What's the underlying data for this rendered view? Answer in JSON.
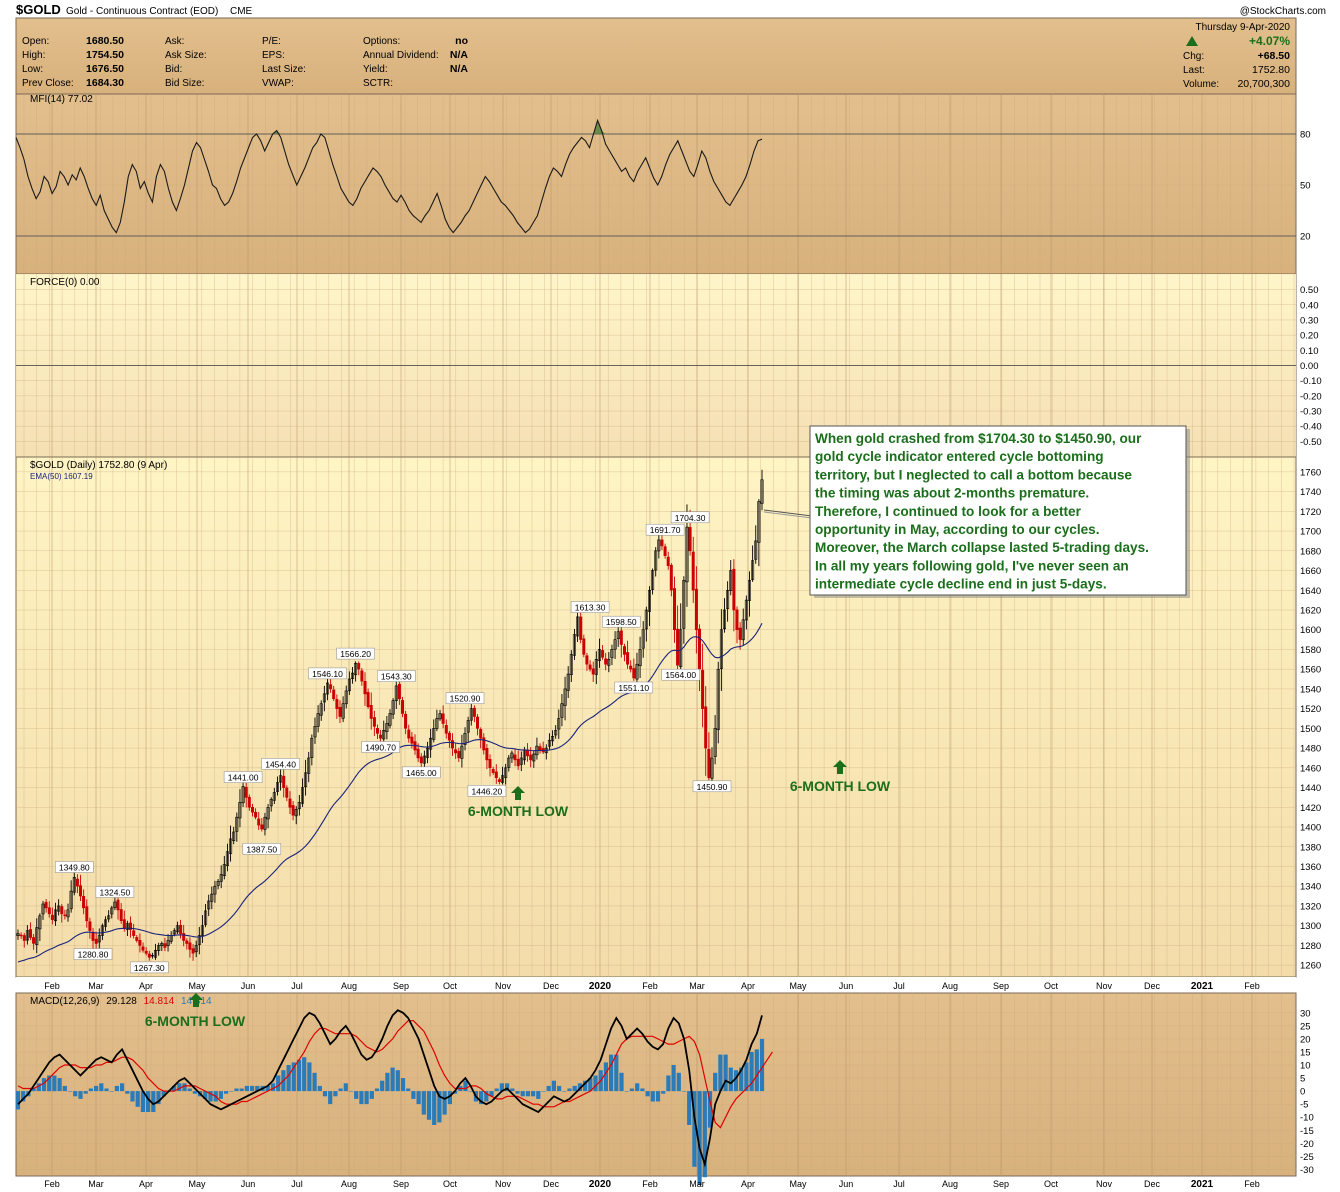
{
  "header": {
    "symbol": "$GOLD",
    "description": "Gold - Continuous Contract (EOD)",
    "exchange": "CME",
    "watermark": "@StockCharts.com",
    "date": "Thursday  9-Apr-2020",
    "change_pct": "+4.07%",
    "stats_left": [
      {
        "label": "Open:",
        "value": "1680.50"
      },
      {
        "label": "High:",
        "value": "1754.50"
      },
      {
        "label": "Low:",
        "value": "1676.50"
      },
      {
        "label": "Prev Close:",
        "value": "1684.30"
      }
    ],
    "stats_mid1": [
      {
        "label": "Ask:",
        "value": ""
      },
      {
        "label": "Ask Size:",
        "value": ""
      },
      {
        "label": "Bid:",
        "value": ""
      },
      {
        "label": "Bid Size:",
        "value": ""
      }
    ],
    "stats_mid2": [
      {
        "label": "P/E:",
        "value": ""
      },
      {
        "label": "EPS:",
        "value": ""
      },
      {
        "label": "Last Size:",
        "value": ""
      },
      {
        "label": "VWAP:",
        "value": ""
      }
    ],
    "stats_mid3": [
      {
        "label": "Options:",
        "value": "no"
      },
      {
        "label": "Annual Dividend:",
        "value": "N/A"
      },
      {
        "label": "Yield:",
        "value": "N/A"
      },
      {
        "label": "SCTR:",
        "value": ""
      }
    ],
    "stats_right": [
      {
        "label": "Chg:",
        "value": "+68.50"
      },
      {
        "label": "Last:",
        "value": "1752.80"
      },
      {
        "label": "Volume:",
        "value": "20,700,300"
      }
    ]
  },
  "colors": {
    "panel_bg": "#dcb785",
    "price_bg_top": "#fff4c4",
    "price_bg_bottom": "#f3dfa9",
    "up": "#000000",
    "down": "#cc0000",
    "ema": "#1a237e",
    "macd_line": "#000000",
    "signal_line": "#e00000",
    "histogram": "#2b7bb9",
    "annotation_green": "#1b6e1b"
  },
  "chart_data": [
    {
      "panel": "mfi",
      "type": "line",
      "label": "MFI(14) 77.02",
      "ylim": [
        0,
        100
      ],
      "yticks": [
        20,
        50,
        80
      ],
      "reference_lines": [
        20,
        80
      ],
      "values": [
        78,
        72,
        65,
        55,
        48,
        42,
        46,
        55,
        52,
        45,
        49,
        58,
        55,
        50,
        56,
        53,
        60,
        55,
        48,
        42,
        38,
        44,
        35,
        30,
        25,
        22,
        28,
        40,
        55,
        62,
        58,
        48,
        52,
        45,
        40,
        55,
        62,
        58,
        48,
        40,
        35,
        42,
        50,
        60,
        70,
        75,
        72,
        65,
        58,
        50,
        48,
        42,
        38,
        40,
        45,
        52,
        60,
        66,
        72,
        78,
        80,
        76,
        70,
        75,
        80,
        82,
        78,
        70,
        62,
        56,
        50,
        55,
        60,
        66,
        72,
        75,
        80,
        78,
        70,
        62,
        55,
        48,
        44,
        40,
        38,
        42,
        48,
        52,
        56,
        60,
        58,
        55,
        50,
        46,
        42,
        40,
        44,
        40,
        35,
        32,
        30,
        28,
        32,
        35,
        40,
        45,
        38,
        30,
        25,
        22,
        25,
        28,
        32,
        35,
        40,
        45,
        50,
        55,
        52,
        48,
        44,
        40,
        38,
        35,
        32,
        28,
        25,
        22,
        24,
        28,
        32,
        40,
        48,
        55,
        60,
        58,
        55,
        62,
        68,
        72,
        75,
        78,
        76,
        72,
        80,
        88,
        82,
        74,
        70,
        66,
        62,
        58,
        60,
        55,
        52,
        58,
        62,
        66,
        60,
        54,
        50,
        55,
        62,
        68,
        72,
        76,
        70,
        64,
        58,
        55,
        62,
        70,
        66,
        58,
        52,
        48,
        44,
        40,
        38,
        42,
        46,
        50,
        55,
        62,
        70,
        76,
        77
      ],
      "highlight_above": 80
    },
    {
      "panel": "force",
      "type": "line",
      "label": "FORCE(0) 0.00",
      "ylim": [
        -0.55,
        0.55
      ],
      "yticks": [
        0.5,
        0.4,
        0.3,
        0.2,
        0.1,
        0.0,
        -0.1,
        -0.2,
        -0.3,
        -0.4,
        -0.5
      ],
      "values": [
        0
      ]
    },
    {
      "panel": "price",
      "type": "candlestick",
      "label": "$GOLD (Daily) 1752.80 (9 Apr)",
      "ema_label": "EMA(50) 1607.19",
      "ylim": [
        1250,
        1770
      ],
      "yticks": [
        1260,
        1280,
        1300,
        1320,
        1340,
        1360,
        1380,
        1400,
        1420,
        1440,
        1460,
        1480,
        1500,
        1520,
        1540,
        1560,
        1580,
        1600,
        1620,
        1640,
        1660,
        1680,
        1700,
        1720,
        1740,
        1760
      ],
      "x_months": [
        "Feb",
        "Mar",
        "Apr",
        "May",
        "Jun",
        "Jul",
        "Aug",
        "Sep",
        "Oct",
        "Nov",
        "Dec",
        "2020",
        "Feb",
        "Mar",
        "Apr",
        "May",
        "Jun",
        "Jul",
        "Aug",
        "Sep",
        "Oct",
        "Nov",
        "Dec",
        "2021",
        "Feb"
      ],
      "closes": [
        1292,
        1290,
        1285,
        1295,
        1288,
        1282,
        1298,
        1310,
        1322,
        1318,
        1312,
        1306,
        1316,
        1320,
        1312,
        1310,
        1316,
        1335,
        1349,
        1340,
        1330,
        1318,
        1305,
        1295,
        1285,
        1282,
        1290,
        1300,
        1306,
        1310,
        1318,
        1324,
        1316,
        1305,
        1298,
        1302,
        1296,
        1290,
        1285,
        1280,
        1275,
        1272,
        1268,
        1270,
        1275,
        1280,
        1282,
        1278,
        1285,
        1290,
        1295,
        1300,
        1292,
        1285,
        1282,
        1276,
        1272,
        1280,
        1290,
        1300,
        1315,
        1325,
        1332,
        1340,
        1345,
        1352,
        1362,
        1375,
        1388,
        1395,
        1410,
        1425,
        1441,
        1430,
        1420,
        1415,
        1410,
        1402,
        1398,
        1410,
        1420,
        1428,
        1435,
        1445,
        1452,
        1440,
        1430,
        1420,
        1412,
        1418,
        1425,
        1440,
        1455,
        1470,
        1490,
        1502,
        1515,
        1525,
        1535,
        1546,
        1540,
        1530,
        1520,
        1512,
        1525,
        1538,
        1550,
        1556,
        1566,
        1560,
        1548,
        1535,
        1522,
        1510,
        1502,
        1495,
        1490,
        1498,
        1505,
        1515,
        1528,
        1543,
        1530,
        1515,
        1500,
        1490,
        1485,
        1478,
        1470,
        1465,
        1472,
        1480,
        1490,
        1500,
        1510,
        1515,
        1505,
        1495,
        1488,
        1480,
        1475,
        1470,
        1482,
        1495,
        1508,
        1520,
        1512,
        1500,
        1490,
        1478,
        1468,
        1460,
        1455,
        1450,
        1446,
        1452,
        1460,
        1470,
        1475,
        1468,
        1462,
        1470,
        1478,
        1472,
        1468,
        1474,
        1482,
        1478,
        1476,
        1480,
        1488,
        1492,
        1498,
        1510,
        1525,
        1540,
        1555,
        1575,
        1595,
        1613,
        1590,
        1575,
        1565,
        1560,
        1555,
        1570,
        1580,
        1572,
        1565,
        1570,
        1580,
        1590,
        1598,
        1585,
        1575,
        1565,
        1560,
        1551,
        1565,
        1580,
        1600,
        1620,
        1640,
        1660,
        1680,
        1691,
        1685,
        1675,
        1665,
        1640,
        1600,
        1564,
        1600,
        1650,
        1704,
        1680,
        1640,
        1600,
        1560,
        1520,
        1480,
        1450,
        1470,
        1500,
        1560,
        1600,
        1620,
        1640,
        1660,
        1620,
        1600,
        1590,
        1610,
        1630,
        1650,
        1670,
        1690,
        1730,
        1752
      ],
      "labels": [
        {
          "index": 18,
          "text": "1349.80",
          "pos": "above"
        },
        {
          "index": 24,
          "text": "1280.80",
          "pos": "below"
        },
        {
          "index": 31,
          "text": "1324.50",
          "pos": "above"
        },
        {
          "index": 42,
          "text": "1267.30",
          "pos": "below"
        },
        {
          "index": 72,
          "text": "1441.00",
          "pos": "above"
        },
        {
          "index": 78,
          "text": "1387.50",
          "pos": "below"
        },
        {
          "index": 84,
          "text": "1454.40",
          "pos": "above"
        },
        {
          "index": 99,
          "text": "1546.10",
          "pos": "above"
        },
        {
          "index": 108,
          "text": "1566.20",
          "pos": "above"
        },
        {
          "index": 116,
          "text": "1490.70",
          "pos": "below"
        },
        {
          "index": 121,
          "text": "1543.30",
          "pos": "above"
        },
        {
          "index": 129,
          "text": "1465.00",
          "pos": "below"
        },
        {
          "index": 143,
          "text": "1520.90",
          "pos": "above"
        },
        {
          "index": 150,
          "text": "1446.20",
          "pos": "below"
        },
        {
          "index": 183,
          "text": "1613.30",
          "pos": "above"
        },
        {
          "index": 197,
          "text": "1551.10",
          "pos": "below"
        },
        {
          "index": 193,
          "text": "1598.50",
          "pos": "above"
        },
        {
          "index": 207,
          "text": "1691.70",
          "pos": "above"
        },
        {
          "index": 212,
          "text": "1564.00",
          "pos": "below"
        },
        {
          "index": 215,
          "text": "1704.30",
          "pos": "above"
        },
        {
          "index": 222,
          "text": "1450.90",
          "pos": "below"
        }
      ]
    },
    {
      "panel": "macd",
      "type": "line+histogram",
      "label_prefix": "MACD(12,26,9)",
      "label_macd": "29.128",
      "label_signal": "14.814",
      "label_hist": "14.314",
      "ylim": [
        -31,
        33
      ],
      "yticks": [
        30,
        25,
        20,
        15,
        10,
        5,
        0,
        -5,
        -10,
        -15,
        -20,
        -25,
        -30
      ],
      "macd": [
        -5,
        -3,
        -1,
        2,
        5,
        8,
        11,
        13,
        14,
        12,
        10,
        8,
        6,
        8,
        10,
        12,
        13,
        12,
        11,
        14,
        16,
        12,
        8,
        4,
        0,
        -3,
        -5,
        -4,
        -2,
        0,
        2,
        4,
        5,
        3,
        1,
        -1,
        -3,
        -5,
        -6,
        -7,
        -6,
        -5,
        -4,
        -3,
        -2,
        -1,
        0,
        1,
        2,
        4,
        8,
        12,
        16,
        20,
        24,
        28,
        30,
        29,
        26,
        22,
        18,
        20,
        23,
        25,
        22,
        18,
        14,
        12,
        13,
        16,
        20,
        25,
        29,
        31,
        30,
        28,
        24,
        20,
        14,
        8,
        2,
        -2,
        -3,
        -2,
        0,
        3,
        5,
        2,
        -2,
        -4,
        -5,
        -4,
        -2,
        0,
        1,
        -1,
        -3,
        -5,
        -6,
        -7,
        -8,
        -6,
        -4,
        -2,
        -3,
        -4,
        -3,
        -1,
        1,
        3,
        5,
        8,
        12,
        18,
        24,
        28,
        25,
        20,
        22,
        24,
        22,
        19,
        17,
        16,
        18,
        24,
        28,
        26,
        20,
        8,
        -10,
        -22,
        -28,
        -18,
        -5,
        0,
        4,
        3,
        5,
        8,
        12,
        18,
        22,
        29
      ],
      "signal": [
        2,
        1,
        1,
        1,
        2,
        3,
        5,
        7,
        9,
        10,
        10,
        10,
        9,
        9,
        9,
        10,
        10,
        11,
        11,
        12,
        13,
        13,
        12,
        10,
        8,
        5,
        3,
        1,
        0,
        0,
        0,
        1,
        2,
        2,
        2,
        1,
        0,
        -1,
        -2,
        -4,
        -5,
        -5,
        -5,
        -4,
        -4,
        -3,
        -2,
        -1,
        0,
        1,
        2,
        4,
        6,
        9,
        12,
        15,
        19,
        22,
        24,
        24,
        23,
        22,
        22,
        22,
        22,
        21,
        19,
        17,
        16,
        15,
        16,
        18,
        20,
        23,
        25,
        27,
        27,
        25,
        23,
        19,
        15,
        10,
        6,
        3,
        1,
        1,
        1,
        2,
        2,
        1,
        -1,
        -2,
        -3,
        -3,
        -2,
        -2,
        -2,
        -3,
        -4,
        -5,
        -5,
        -6,
        -6,
        -6,
        -5,
        -4,
        -4,
        -3,
        -2,
        -1,
        0,
        2,
        4,
        7,
        10,
        14,
        18,
        20,
        21,
        21,
        21,
        21,
        21,
        20,
        19,
        18,
        18,
        19,
        20,
        21,
        19,
        14,
        5,
        -4,
        -12,
        -14,
        -10,
        -6,
        -3,
        -1,
        1,
        3,
        6,
        9,
        12,
        15
      ]
    }
  ],
  "annotations": {
    "commentary": [
      "When gold crashed from $1704.30 to $1450.90, our",
      "gold cycle indicator entered cycle bottoming",
      "territory, but I neglected to call a bottom because",
      "the timing was about 2-months premature.",
      "Therefore, I continued to look for a better",
      "opportunity in May, according to our cycles.",
      "Moreover, the March collapse lasted 5-trading days.",
      "In all my years following gold, I've never seen an",
      "intermediate cycle decline end in just 5-days."
    ],
    "six_month_low": "6-MONTH LOW"
  }
}
